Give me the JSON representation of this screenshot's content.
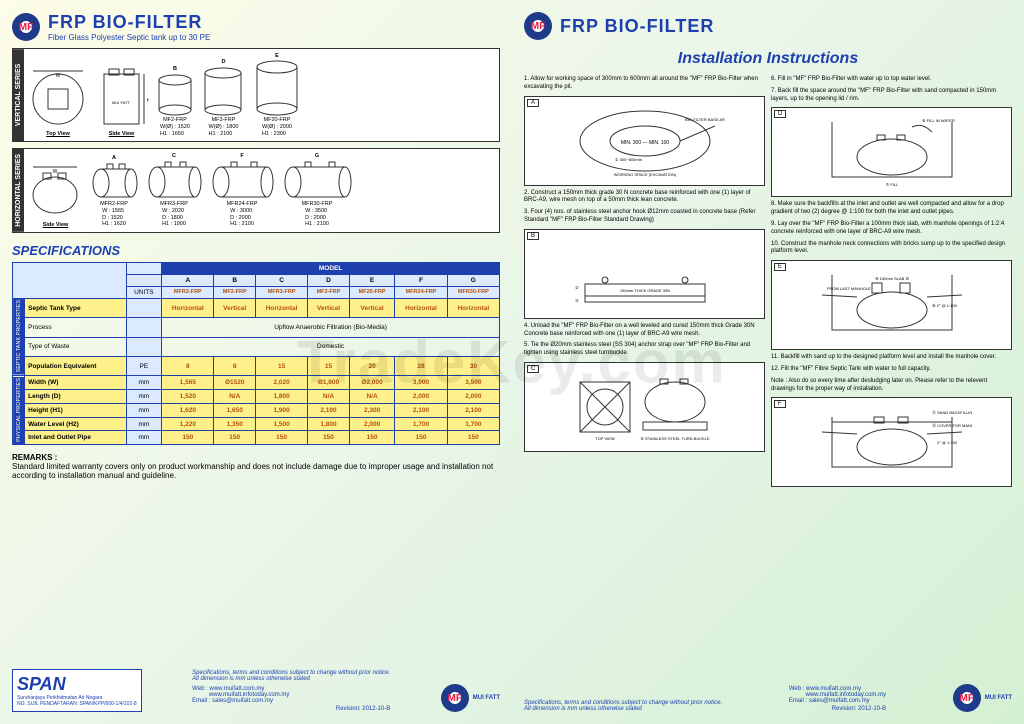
{
  "watermark": "TradeKey.com",
  "brand": "MF",
  "company": "MUI FATT",
  "product_title": "FRP BIO-FILTER",
  "product_subtitle": "Fiber Glass Polyester Septic tank up to 30 PE",
  "vertical_label": "VERTICAL SERIES",
  "horizontal_label": "HORIZONTAL SERIES",
  "views": {
    "top": "Top View",
    "side": "Side View"
  },
  "vert_tanks": [
    {
      "letter": "B",
      "name": "MF2-FRP",
      "specs": "W(Ø) : 1520\nH1 : 1650"
    },
    {
      "letter": "D",
      "name": "MF3-FRP",
      "specs": "W(Ø) : 1800\nH1 : 2100"
    },
    {
      "letter": "E",
      "name": "MF20-FRP",
      "specs": "W(Ø) : 2000\nH1 : 2300"
    }
  ],
  "horiz_tanks": [
    {
      "letter": "A",
      "name": "MFR2-FRP",
      "specs": "W : 1565\nD : 1520\nH1 : 1620"
    },
    {
      "letter": "C",
      "name": "MFR3-FRP",
      "specs": "W : 2020\nD : 1800\nH1 : 1900"
    },
    {
      "letter": "F",
      "name": "MFR24-FRP",
      "specs": "W : 3000\nD : 2000\nH1 : 2100"
    },
    {
      "letter": "G",
      "name": "MFR30-FRP",
      "specs": "W : 3500\nD : 2000\nH1 : 2100"
    }
  ],
  "spec_title": "SPECIFICATIONS",
  "model_header": "MODEL",
  "units_header": "UNITS",
  "col_letters": [
    "A",
    "B",
    "C",
    "D",
    "E",
    "F",
    "G"
  ],
  "col_models": [
    "MFR2-FRP",
    "MF2-FRP",
    "MFR3-FRP",
    "MF3-FRP",
    "MF20-FRP",
    "MFR24-FRP",
    "MFR30-FRP"
  ],
  "group1": "SEPTIC TANK PROPERTIES",
  "group2": "PHYSICAL PROPERTIES",
  "rows": [
    {
      "label": "Septic Tank Type",
      "unit": "",
      "vals": [
        "Horizontal",
        "Vertical",
        "Horizontal",
        "Vertical",
        "Vertical",
        "Horizontal",
        "Horizontal"
      ],
      "hl": true
    },
    {
      "label": "Process",
      "unit": "",
      "span": "Upflow Anaerobic Filtration (Bio-Media)"
    },
    {
      "label": "Type of Waste",
      "unit": "",
      "span": "Domestic"
    },
    {
      "label": "Population Equivalent",
      "unit": "PE",
      "vals": [
        "8",
        "8",
        "15",
        "15",
        "20",
        "28",
        "30"
      ],
      "hl": true,
      "bold": true
    },
    {
      "label": "Width (W)",
      "unit": "mm",
      "vals": [
        "1,565",
        "Ø1520",
        "2,020",
        "Ø1,800",
        "Ø2,000",
        "3,000",
        "3,500"
      ],
      "hl": true
    },
    {
      "label": "Length (D)",
      "unit": "mm",
      "vals": [
        "1,520",
        "N/A",
        "1,800",
        "N/A",
        "N/A",
        "2,000",
        "2,000"
      ],
      "hl": true
    },
    {
      "label": "Height (H1)",
      "unit": "mm",
      "vals": [
        "1,620",
        "1,650",
        "1,900",
        "2,100",
        "2,300",
        "2,100",
        "2,100"
      ],
      "hl": true
    },
    {
      "label": "Water Level (H2)",
      "unit": "mm",
      "vals": [
        "1,220",
        "1,350",
        "1,500",
        "1,800",
        "2,000",
        "1,700",
        "1,700"
      ],
      "hl": true
    },
    {
      "label": "Inlet and Outlet Pipe",
      "unit": "mm",
      "vals": [
        "150",
        "150",
        "150",
        "150",
        "150",
        "150",
        "150"
      ],
      "hl": true
    }
  ],
  "remarks_label": "REMARKS :",
  "remarks_text": "Standard limited warranty covers only on product workmanship and does not include damage due to improper usage and installation not according to installation manual and guideline.",
  "span_cert": {
    "big": "SPAN",
    "line1": "Suruhanjaya Perkhidmatan Air Negara",
    "line2": "NO. SIJIL PENDAFTARAN: SPAN/KPP/600-1/4/102-8"
  },
  "footer_disc": "Specifications, terms and conditions subject to change without prior notice.\nAll dimension is mm unless otherwise stated",
  "footer_web": "Web : www.muifatt.com.my\n          www.muifatt.infotoday.com.my\nEmail : sales@muifatt.com.my",
  "revision": "Revision: 2012-10-B",
  "inst_title": "Installation Instructions",
  "inst_left": [
    "1. Allow for working space of 300mm to 600mm all around the \"MF\" FRP Bio-Filter when excavating the pit.",
    "2. Construct a 150mm thick grade 30 N concrete base reinforced with one (1) layer of BRC-A9, wire mesh on top of a 50mm thick lean concrete.",
    "3. Four (4) nos. of stainless steel anchor hook Ø12mm coasted in concrete base (Refer Standard \"MF\" FRP Bio-Filter Standard Drawing)",
    "4. Unload the \"MF\" FRP Bio-Filter on a well leveled and cured 150mm thick Grade 30N Concrete base reinforced with one (1) layer of BRC-A9 wire mesh.",
    "5. Tie the Ø20mm stainless steel (SS 304) anchor strap over \"MF\" FRP Bio-Filter and tighten using stainless steel turnbuckle."
  ],
  "inst_right": [
    "6. Fill in \"MF\" FRP Bio-Filter with water up to top water level.",
    "7. Back fill the space around the \"MF\" FRP Bio-Filter with sand compacted in 150mm layers, up to the opening lid / rim.",
    "8. Make sure the backfills at the inlet and outlet are well compacted and allow for a drop gradient of two (2) degree @ 1:100 for both the inlet and outlet pipes.",
    "9. Lay over the \"MF\" FRP Bio-Filter a 100mm thick slab, with manhole openings of 1:2:4 concrete reinforced with one layer of BRC-A9 wire mesh.",
    "10. Construct the manhole neck connections with bricks sump up to the specified design platform level.",
    "11. Backfill with sand up to the designed platform level and install the manhole cover.",
    "12. Fill the \"MF\" Fibre Septic Tank with water to full capacity.",
    "Note : Also do so every time after desludging later on. Please refer to the relevent drawings for the proper way of installation."
  ],
  "diag_labels": [
    "A",
    "B",
    "C",
    "D",
    "E",
    "F"
  ]
}
